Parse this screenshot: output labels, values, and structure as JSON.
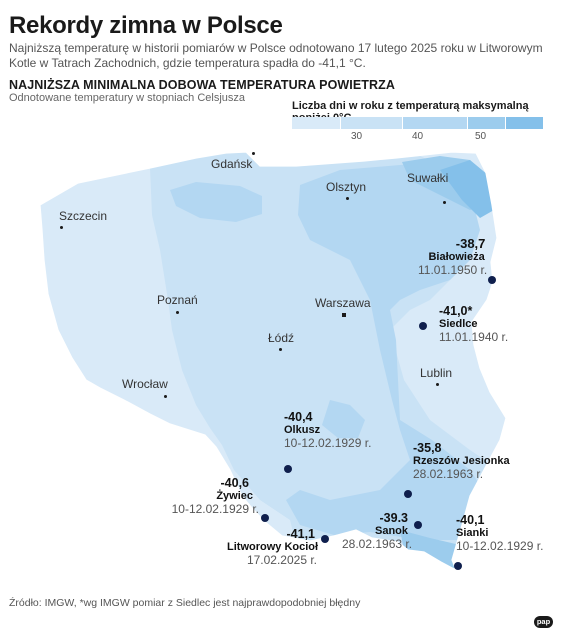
{
  "title": "Rekordy zimna w Polsce",
  "subtitle": "Najniższą temperaturę w historii pomiarów w Polsce odnotowano 17 lutego 2025 roku w Litworowym Kotle w Tatrach Zachodnich, gdzie temperatura spadła do -41,1 °C.",
  "heading": "NAJNIŻSZA MINIMALNA DOBOWA TEMPERATURA POWIETRZA",
  "units_note": "Odnotowane temperatury w stopniach Celsjusza",
  "legend": {
    "title": "Liczba dni w roku z temperaturą maksymalną poniżej 0°C",
    "ticks": [
      "30",
      "40",
      "50"
    ],
    "colors": [
      "#e4f0fa",
      "#cfe5f6",
      "#b3d7f2",
      "#93c8ee",
      "#78bbe9"
    ]
  },
  "cities": [
    {
      "id": "gdansk",
      "name": "Gdańsk"
    },
    {
      "id": "olsztyn",
      "name": "Olsztyn"
    },
    {
      "id": "suwalki",
      "name": "Suwałki"
    },
    {
      "id": "szczecin",
      "name": "Szczecin"
    },
    {
      "id": "poznan",
      "name": "Poznań"
    },
    {
      "id": "warszawa",
      "name": "Warszawa"
    },
    {
      "id": "lodz",
      "name": "Łódź"
    },
    {
      "id": "lublin",
      "name": "Lublin"
    },
    {
      "id": "wroclaw",
      "name": "Wrocław"
    }
  ],
  "records": [
    {
      "id": "bialowieza",
      "temp": "-38,7",
      "place": "Białowieża",
      "date": "11.01.1950 r."
    },
    {
      "id": "siedlce",
      "temp": "-41,0*",
      "place": "Siedlce",
      "date": "11.01.1940 r."
    },
    {
      "id": "olkusz",
      "temp": "-40,4",
      "place": "Olkusz",
      "date": "10-12.02.1929 r."
    },
    {
      "id": "rzeszow",
      "temp": "-35,8",
      "place": "Rzeszów Jesionka",
      "date": "28.02.1963 r."
    },
    {
      "id": "zywiec",
      "temp": "-40,6",
      "place": "Żywiec",
      "date": "10-12.02.1929 r."
    },
    {
      "id": "litworowy",
      "temp": "-41,1",
      "place": "Litworowy Kocioł",
      "date": "17.02.2025 r."
    },
    {
      "id": "sanok",
      "temp": "-39.3",
      "place": "Sanok",
      "date": "28.02.1963 r."
    },
    {
      "id": "sianki",
      "temp": "-40,1",
      "place": "Sianki",
      "date": "10-12.02.1929 r."
    }
  ],
  "source": "Źródło: IMGW, *wg IMGW pomiar z Siedlec jest najprawdopodobniej błędny",
  "logo": "pap"
}
